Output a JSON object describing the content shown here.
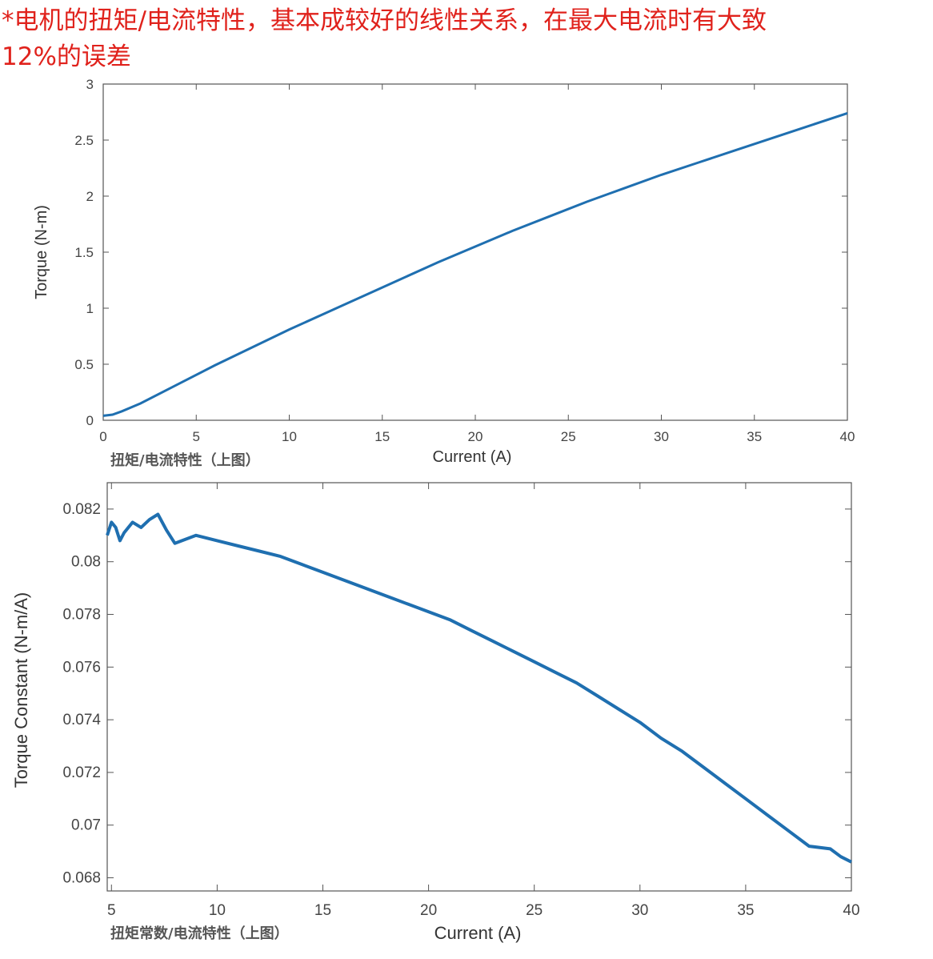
{
  "note": {
    "line1": "*电机的扭矩/电流特性，基本成较好的线性关系，在最大电流时有大致",
    "line2": "12%的误差"
  },
  "colors": {
    "note": "#e0221c",
    "line": "#1f6fb0"
  },
  "chart_data": [
    {
      "type": "line",
      "title": "",
      "caption": "扭矩/电流特性（上图）",
      "xlabel": "Current (A)",
      "ylabel": "Torque (N-m)",
      "xlim": [
        0,
        40
      ],
      "ylim": [
        0,
        3
      ],
      "xticks": [
        "0",
        "5",
        "10",
        "15",
        "20",
        "25",
        "30",
        "35",
        "40"
      ],
      "yticks": [
        "0",
        "0.5",
        "1",
        "1.5",
        "2",
        "2.5",
        "3"
      ],
      "series": [
        {
          "x": [
            0,
            0.5,
            1,
            2,
            4,
            6,
            8,
            10,
            12,
            14,
            16,
            18,
            20,
            22,
            24,
            26,
            28,
            30,
            32,
            34,
            36,
            38,
            40
          ],
          "y": [
            0.04,
            0.05,
            0.08,
            0.15,
            0.32,
            0.49,
            0.65,
            0.81,
            0.96,
            1.11,
            1.26,
            1.41,
            1.55,
            1.69,
            1.82,
            1.95,
            2.07,
            2.19,
            2.3,
            2.41,
            2.52,
            2.63,
            2.74
          ]
        }
      ]
    },
    {
      "type": "line",
      "title": "",
      "caption": "扭矩常数/电流特性（上图）",
      "xlabel": "Current (A)",
      "ylabel": "Torque Constant (N-m/A)",
      "xlim": [
        4.8,
        40
      ],
      "ylim": [
        0.0675,
        0.083
      ],
      "xticks": [
        "5",
        "10",
        "15",
        "20",
        "25",
        "30",
        "35",
        "40"
      ],
      "yticks": [
        "0.068",
        "0.07",
        "0.072",
        "0.074",
        "0.076",
        "0.078",
        "0.08",
        "0.082"
      ],
      "series": [
        {
          "x": [
            4.8,
            5.0,
            5.2,
            5.4,
            5.6,
            6.0,
            6.4,
            6.8,
            7.2,
            7.6,
            8,
            9,
            10,
            11,
            12,
            13,
            14,
            15,
            16,
            17,
            18,
            19,
            20,
            21,
            22,
            23,
            24,
            25,
            26,
            27,
            28,
            29,
            30,
            31,
            32,
            33,
            34,
            35,
            36,
            37,
            38,
            39,
            39.5,
            40
          ],
          "y": [
            0.081,
            0.0815,
            0.0813,
            0.0808,
            0.0811,
            0.0815,
            0.0813,
            0.0816,
            0.0818,
            0.0812,
            0.0807,
            0.081,
            0.0808,
            0.0806,
            0.0804,
            0.0802,
            0.0799,
            0.0796,
            0.0793,
            0.079,
            0.0787,
            0.0784,
            0.0781,
            0.0778,
            0.0774,
            0.077,
            0.0766,
            0.0762,
            0.0758,
            0.0754,
            0.0749,
            0.0744,
            0.0739,
            0.0733,
            0.0728,
            0.0722,
            0.0716,
            0.071,
            0.0704,
            0.0698,
            0.0692,
            0.0691,
            0.0688,
            0.0686
          ]
        }
      ]
    }
  ]
}
